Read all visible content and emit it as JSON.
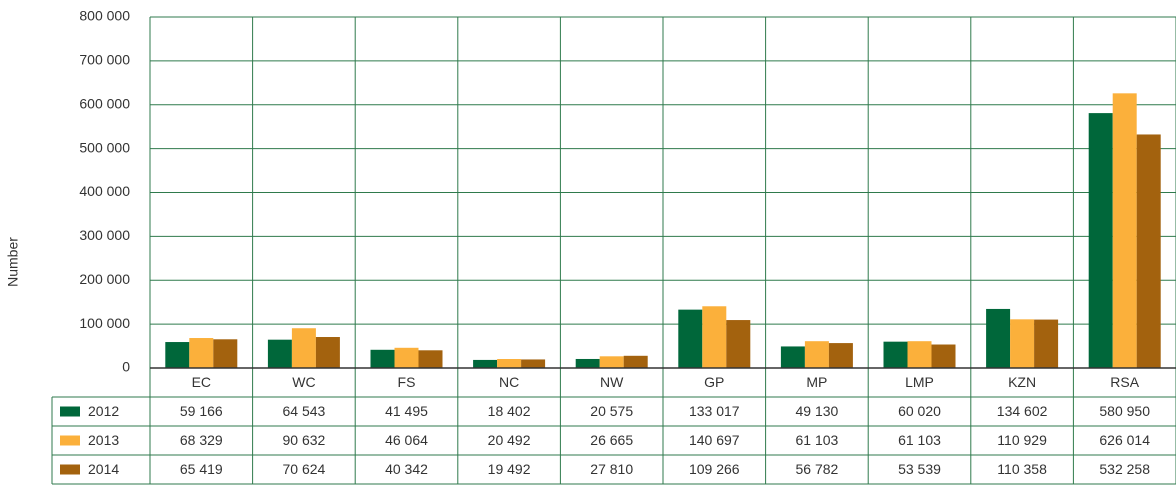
{
  "chart_data": {
    "type": "bar",
    "y_label": "Number",
    "categories": [
      "EC",
      "WC",
      "FS",
      "NC",
      "NW",
      "GP",
      "MP",
      "LMP",
      "KZN",
      "RSA"
    ],
    "series": [
      {
        "name": "2012",
        "color": "#00673a",
        "values": [
          59166,
          64543,
          41495,
          18402,
          20575,
          133017,
          49130,
          60020,
          134602,
          580950
        ],
        "value_labels": [
          "59 166",
          "64 543",
          "41 495",
          "18 402",
          "20 575",
          "133 017",
          "49 130",
          "60 020",
          "134 602",
          "580 950"
        ]
      },
      {
        "name": "2013",
        "color": "#fbb03b",
        "values": [
          68329,
          90632,
          46064,
          20492,
          26665,
          140697,
          61103,
          61103,
          110929,
          626014
        ],
        "value_labels": [
          "68 329",
          "90 632",
          "46 064",
          "20 492",
          "26 665",
          "140 697",
          "61 103",
          "61 103",
          "110 929",
          "626 014"
        ]
      },
      {
        "name": "2014",
        "color": "#a3620e",
        "values": [
          65419,
          70624,
          40342,
          19492,
          27810,
          109266,
          56782,
          53539,
          110358,
          532258
        ],
        "value_labels": [
          "65 419",
          "70 624",
          "40 342",
          "19 492",
          "27 810",
          "109 266",
          "56 782",
          "53 539",
          "110 358",
          "532 258"
        ]
      }
    ],
    "ylim": [
      0,
      800000
    ],
    "yticks": [
      0,
      {
        "value": 100000,
        "label": "100 000"
      },
      {
        "value": 200000,
        "label": "200 000"
      },
      {
        "value": 300000,
        "label": "300 000"
      },
      {
        "value": 400000,
        "label": "400 000"
      },
      {
        "value": 500000,
        "label": "500 000"
      },
      {
        "value": 600000,
        "label": "600 000"
      },
      {
        "value": 700000,
        "label": "700 000"
      },
      {
        "value": 800000,
        "label": "800 000"
      }
    ],
    "grid": true
  }
}
